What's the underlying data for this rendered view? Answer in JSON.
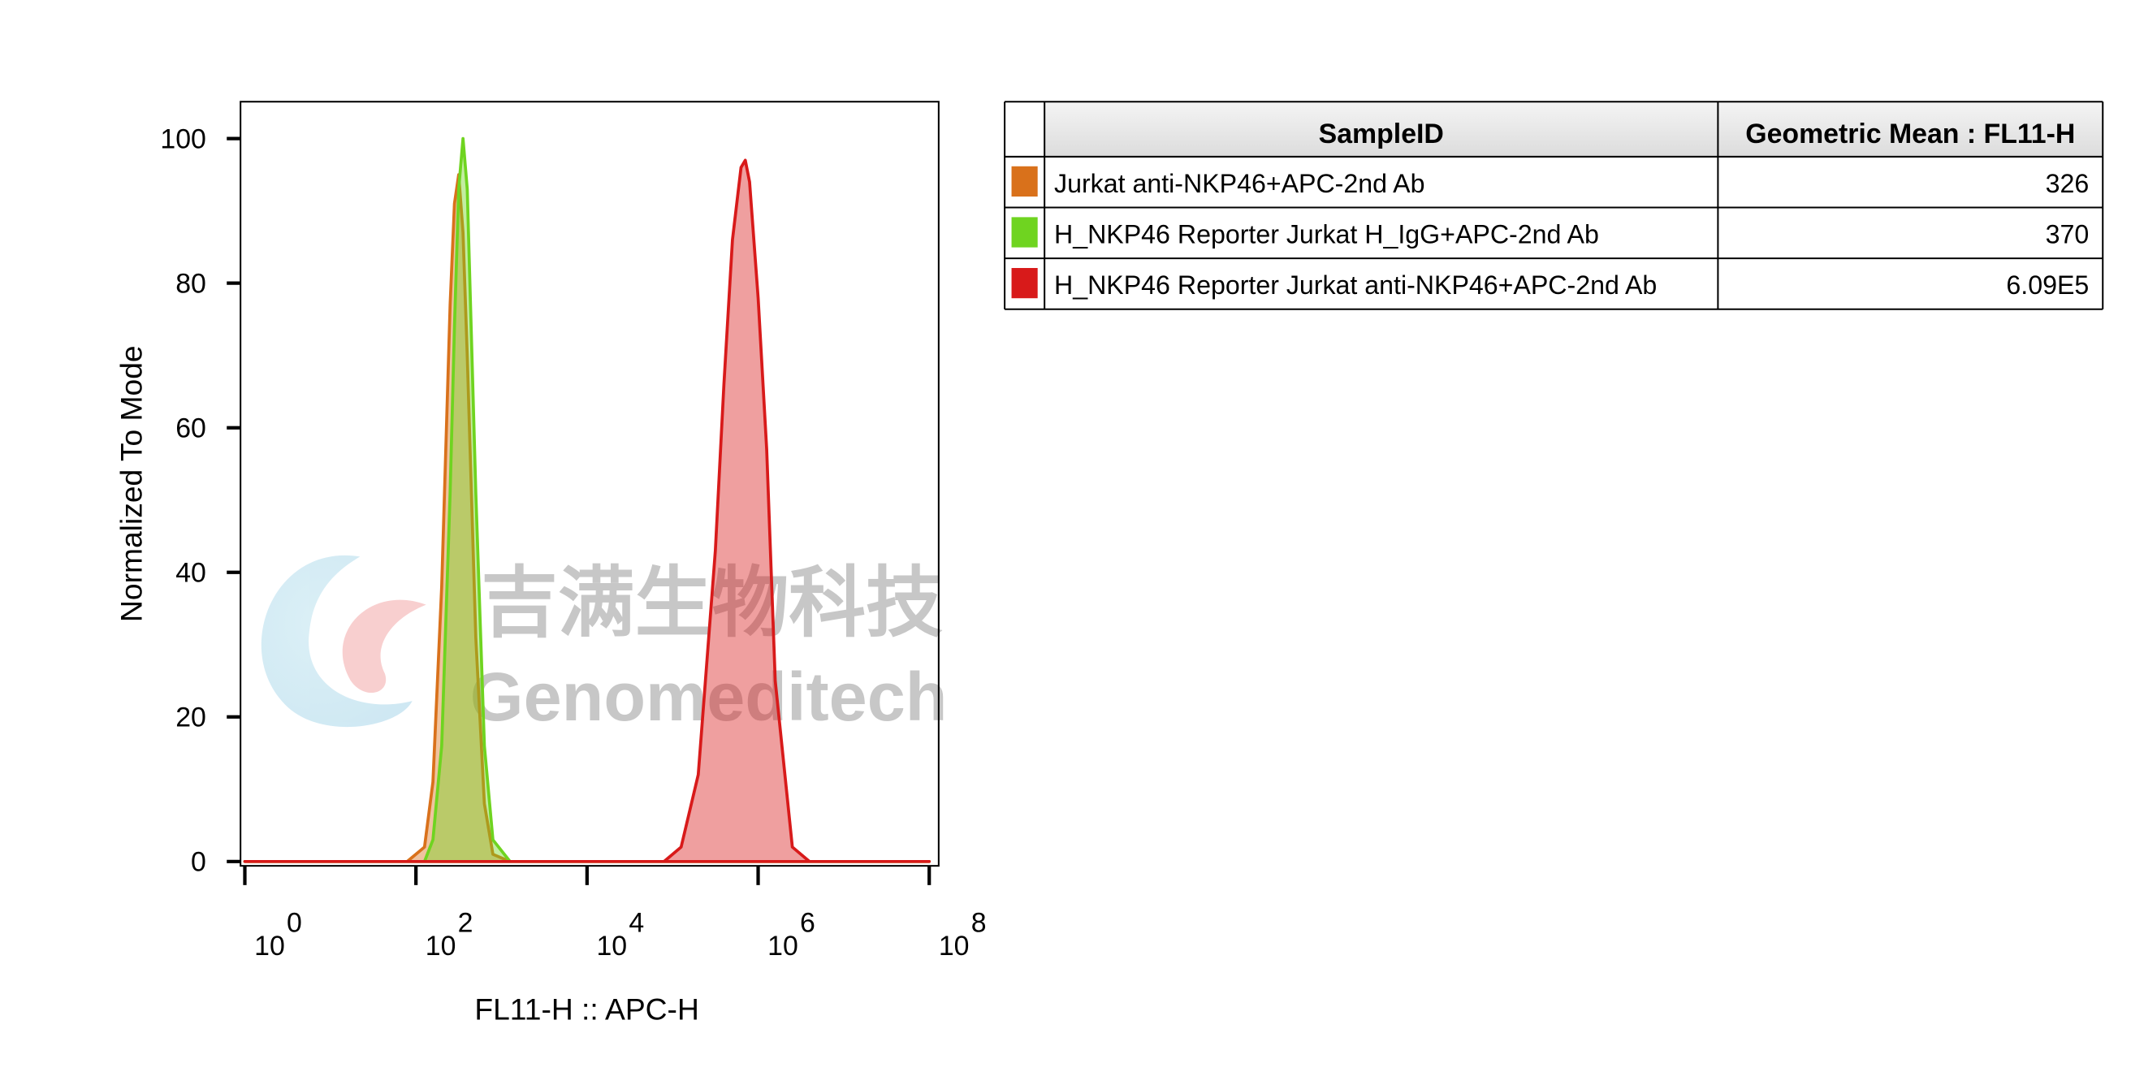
{
  "chart_data": {
    "type": "histogram-overlay",
    "xlabel": "FL11-H :: APC-H",
    "ylabel": "Normalized To Mode",
    "xscale": "log",
    "xlim": [
      0.89,
      129000000
    ],
    "ylim": [
      -0.6,
      105.1
    ],
    "xticks": [
      {
        "value": 1,
        "label": "10",
        "exponent": "0"
      },
      {
        "value": 100,
        "label": "10",
        "exponent": "2"
      },
      {
        "value": 10000,
        "label": "10",
        "exponent": "4"
      },
      {
        "value": 1000000,
        "label": "10",
        "exponent": "6"
      },
      {
        "value": 100000000,
        "label": "10",
        "exponent": "8"
      }
    ],
    "yticks": [
      0,
      20,
      40,
      60,
      80,
      100
    ],
    "series": [
      {
        "name": "Jurkat anti-NKP46+APC-2nd Ab",
        "color": "#d9711b",
        "x": [
          1,
          79,
          126,
          158,
          200,
          251,
          282,
          316,
          355,
          398,
          501,
          631,
          794,
          1259,
          100000000
        ],
        "values": [
          0,
          0,
          2,
          11,
          38,
          77,
          91,
          95,
          87,
          70,
          31,
          8,
          1,
          0,
          0
        ]
      },
      {
        "name": "H_NKP46 Reporter Jurkat H_IgG+APC-2nd Ab",
        "color": "#6fd420",
        "x": [
          1,
          79,
          126,
          158,
          200,
          251,
          282,
          316,
          355,
          398,
          501,
          631,
          794,
          1259,
          100000000
        ],
        "values": [
          0,
          0,
          0,
          3,
          16,
          51,
          74,
          93,
          100,
          93,
          51,
          16,
          3,
          0,
          0
        ]
      },
      {
        "name": "H_NKP46 Reporter Jurkat anti-NKP46+APC-2nd Ab",
        "color": "#d81a1a",
        "x": [
          1,
          79433,
          125893,
          199526,
          316228,
          398107,
          501187,
          630957,
          707946,
          794328,
          1000000,
          1258925,
          1584893,
          2511886,
          3981072,
          100000000
        ],
        "values": [
          0,
          0,
          2,
          12,
          43,
          66,
          86,
          96,
          97,
          94,
          78,
          57,
          25,
          2,
          0,
          0
        ]
      }
    ]
  },
  "table": {
    "columns": [
      "SampleID",
      "Geometric Mean : FL11-H"
    ],
    "values": [
      "326",
      "370",
      "6.09E5"
    ]
  },
  "watermark": {
    "cn": "吉满生物科技",
    "en": "Genomeditech"
  }
}
